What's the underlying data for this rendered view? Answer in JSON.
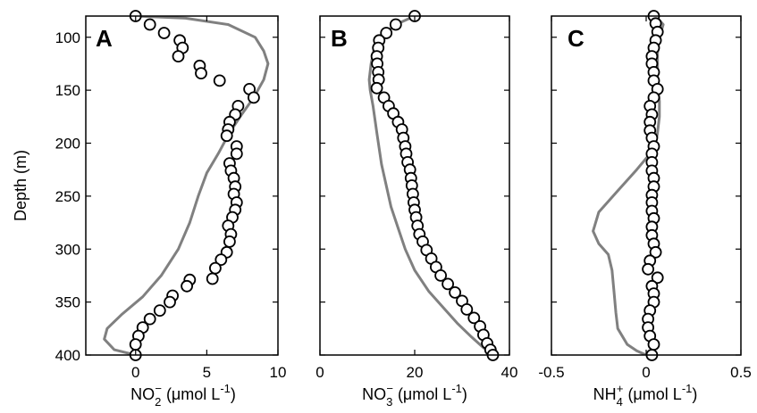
{
  "chart_data": [
    {
      "type": "scatter",
      "letter": "A",
      "ylabel": "Depth (m)",
      "xlabel": {
        "species": "NO",
        "sub": "2",
        "sup": "−",
        "unit": " (μmol L",
        "unit_sup": "-1",
        "close": ")"
      },
      "xlim": [
        -3.5,
        10
      ],
      "ylim": [
        80,
        400
      ],
      "y_reversed": true,
      "xticks": [
        0,
        5,
        10
      ],
      "yticks": [
        100,
        150,
        200,
        250,
        300,
        350,
        400
      ],
      "observed": [
        [
          0,
          80
        ],
        [
          1,
          88
        ],
        [
          2,
          96
        ],
        [
          3.1,
          103
        ],
        [
          3.3,
          110
        ],
        [
          3,
          118
        ],
        [
          4.5,
          127
        ],
        [
          4.6,
          134
        ],
        [
          5.9,
          141
        ],
        [
          8,
          149
        ],
        [
          8.3,
          157
        ],
        [
          7.2,
          165
        ],
        [
          7,
          173
        ],
        [
          6.6,
          180
        ],
        [
          6.5,
          187
        ],
        [
          6.4,
          193
        ],
        [
          7.1,
          203
        ],
        [
          7.1,
          210
        ],
        [
          6.6,
          219
        ],
        [
          6.7,
          226
        ],
        [
          6.9,
          233
        ],
        [
          7,
          241
        ],
        [
          6.9,
          248
        ],
        [
          7.1,
          256
        ],
        [
          7,
          263
        ],
        [
          6.8,
          270
        ],
        [
          6.5,
          278
        ],
        [
          6.7,
          286
        ],
        [
          6.6,
          293
        ],
        [
          6.4,
          303
        ],
        [
          6,
          310
        ],
        [
          5.6,
          318
        ],
        [
          5.4,
          328
        ],
        [
          3.8,
          329
        ],
        [
          3.6,
          335
        ],
        [
          2.6,
          344
        ],
        [
          2.4,
          350
        ],
        [
          1.7,
          358
        ],
        [
          1,
          366
        ],
        [
          0.5,
          374
        ],
        [
          0.2,
          382
        ],
        [
          0,
          390
        ],
        [
          0,
          400
        ]
      ],
      "model": [
        [
          0,
          80
        ],
        [
          3.5,
          82
        ],
        [
          6.5,
          88
        ],
        [
          8.4,
          100
        ],
        [
          9,
          113
        ],
        [
          9.3,
          125
        ],
        [
          9,
          140
        ],
        [
          8.3,
          157
        ],
        [
          7.5,
          172
        ],
        [
          6.6,
          190
        ],
        [
          5.8,
          210
        ],
        [
          5,
          228
        ],
        [
          4.4,
          250
        ],
        [
          3.8,
          275
        ],
        [
          3,
          300
        ],
        [
          1.8,
          325
        ],
        [
          0.5,
          345
        ],
        [
          -1,
          362
        ],
        [
          -2,
          375
        ],
        [
          -2.2,
          385
        ],
        [
          -1.5,
          395
        ],
        [
          0,
          400
        ]
      ]
    },
    {
      "type": "scatter",
      "letter": "B",
      "xlabel": {
        "species": "NO",
        "sub": "3",
        "sup": "−",
        "unit": " (μmol L",
        "unit_sup": "-1",
        "close": ")"
      },
      "xlim": [
        0,
        40
      ],
      "ylim": [
        80,
        400
      ],
      "y_reversed": true,
      "xticks": [
        0,
        20,
        40
      ],
      "observed": [
        [
          20,
          80
        ],
        [
          16,
          88
        ],
        [
          14,
          96
        ],
        [
          12.5,
          103
        ],
        [
          12.3,
          110
        ],
        [
          12,
          118
        ],
        [
          12.1,
          125
        ],
        [
          12.3,
          133
        ],
        [
          12.4,
          140
        ],
        [
          12,
          148
        ],
        [
          13.5,
          157
        ],
        [
          14.5,
          165
        ],
        [
          15.5,
          172
        ],
        [
          16.5,
          180
        ],
        [
          17.3,
          187
        ],
        [
          17.6,
          195
        ],
        [
          18,
          203
        ],
        [
          18.2,
          210
        ],
        [
          18.5,
          218
        ],
        [
          19,
          225
        ],
        [
          19.2,
          233
        ],
        [
          19.4,
          240
        ],
        [
          19.6,
          248
        ],
        [
          19.8,
          256
        ],
        [
          20,
          263
        ],
        [
          20.3,
          270
        ],
        [
          20.6,
          278
        ],
        [
          21,
          286
        ],
        [
          21.7,
          293
        ],
        [
          22.5,
          301
        ],
        [
          23.5,
          309
        ],
        [
          24.5,
          317
        ],
        [
          25.5,
          325
        ],
        [
          27,
          333
        ],
        [
          28.5,
          341
        ],
        [
          30,
          349
        ],
        [
          31,
          357
        ],
        [
          32.5,
          365
        ],
        [
          33.8,
          373
        ],
        [
          34.5,
          381
        ],
        [
          35.3,
          389
        ],
        [
          36,
          395
        ],
        [
          36.5,
          400
        ]
      ],
      "model": [
        [
          20,
          80
        ],
        [
          16,
          88
        ],
        [
          12.7,
          100
        ],
        [
          11.5,
          110
        ],
        [
          10.8,
          125
        ],
        [
          10.4,
          140
        ],
        [
          10.6,
          150
        ],
        [
          11.2,
          165
        ],
        [
          12,
          190
        ],
        [
          13,
          220
        ],
        [
          14,
          240
        ],
        [
          15,
          260
        ],
        [
          16.5,
          280
        ],
        [
          18,
          300
        ],
        [
          20,
          320
        ],
        [
          23,
          340
        ],
        [
          26,
          355
        ],
        [
          29,
          370
        ],
        [
          32,
          383
        ],
        [
          34.5,
          393
        ],
        [
          36.5,
          400
        ]
      ]
    },
    {
      "type": "scatter",
      "letter": "C",
      "xlabel": {
        "species": "NH",
        "sub": "4",
        "sup": "+",
        "unit": " (μmol L",
        "unit_sup": "-1",
        "close": ")"
      },
      "xlim": [
        -0.5,
        0.5
      ],
      "ylim": [
        80,
        400
      ],
      "y_reversed": true,
      "xticks": [
        -0.5,
        0,
        0.5
      ],
      "observed": [
        [
          0.04,
          80
        ],
        [
          0.05,
          87
        ],
        [
          0.06,
          95
        ],
        [
          0.05,
          103
        ],
        [
          0.04,
          110
        ],
        [
          0.03,
          118
        ],
        [
          0.03,
          125
        ],
        [
          0.04,
          133
        ],
        [
          0.04,
          141
        ],
        [
          0.06,
          149
        ],
        [
          0.04,
          157
        ],
        [
          0.02,
          165
        ],
        [
          0.03,
          173
        ],
        [
          0.02,
          180
        ],
        [
          0.02,
          188
        ],
        [
          0.03,
          195
        ],
        [
          0.04,
          203
        ],
        [
          0.03,
          210
        ],
        [
          0.03,
          218
        ],
        [
          0.03,
          226
        ],
        [
          0.04,
          233
        ],
        [
          0.04,
          241
        ],
        [
          0.03,
          249
        ],
        [
          0.03,
          256
        ],
        [
          0.03,
          264
        ],
        [
          0.04,
          271
        ],
        [
          0.03,
          279
        ],
        [
          0.03,
          287
        ],
        [
          0.04,
          295
        ],
        [
          0.05,
          303
        ],
        [
          0.02,
          311
        ],
        [
          0.01,
          319
        ],
        [
          0.06,
          327
        ],
        [
          0.03,
          335
        ],
        [
          0.04,
          342
        ],
        [
          0.04,
          350
        ],
        [
          0.02,
          358
        ],
        [
          0.01,
          366
        ],
        [
          0.01,
          374
        ],
        [
          0.02,
          382
        ],
        [
          0.04,
          390
        ],
        [
          0.03,
          400
        ]
      ],
      "model": [
        [
          0.05,
          80
        ],
        [
          0.09,
          88
        ],
        [
          0.07,
          100
        ],
        [
          0.06,
          115
        ],
        [
          0.06,
          130
        ],
        [
          0.06,
          145
        ],
        [
          0.07,
          160
        ],
        [
          0.07,
          175
        ],
        [
          0.06,
          190
        ],
        [
          0.05,
          200
        ],
        [
          0.02,
          210
        ],
        [
          -0.05,
          225
        ],
        [
          -0.15,
          245
        ],
        [
          -0.25,
          265
        ],
        [
          -0.28,
          283
        ],
        [
          -0.25,
          295
        ],
        [
          -0.2,
          305
        ],
        [
          -0.18,
          320
        ],
        [
          -0.17,
          340
        ],
        [
          -0.16,
          360
        ],
        [
          -0.15,
          375
        ],
        [
          -0.1,
          390
        ],
        [
          -0.05,
          396
        ],
        [
          0,
          400
        ]
      ]
    }
  ]
}
